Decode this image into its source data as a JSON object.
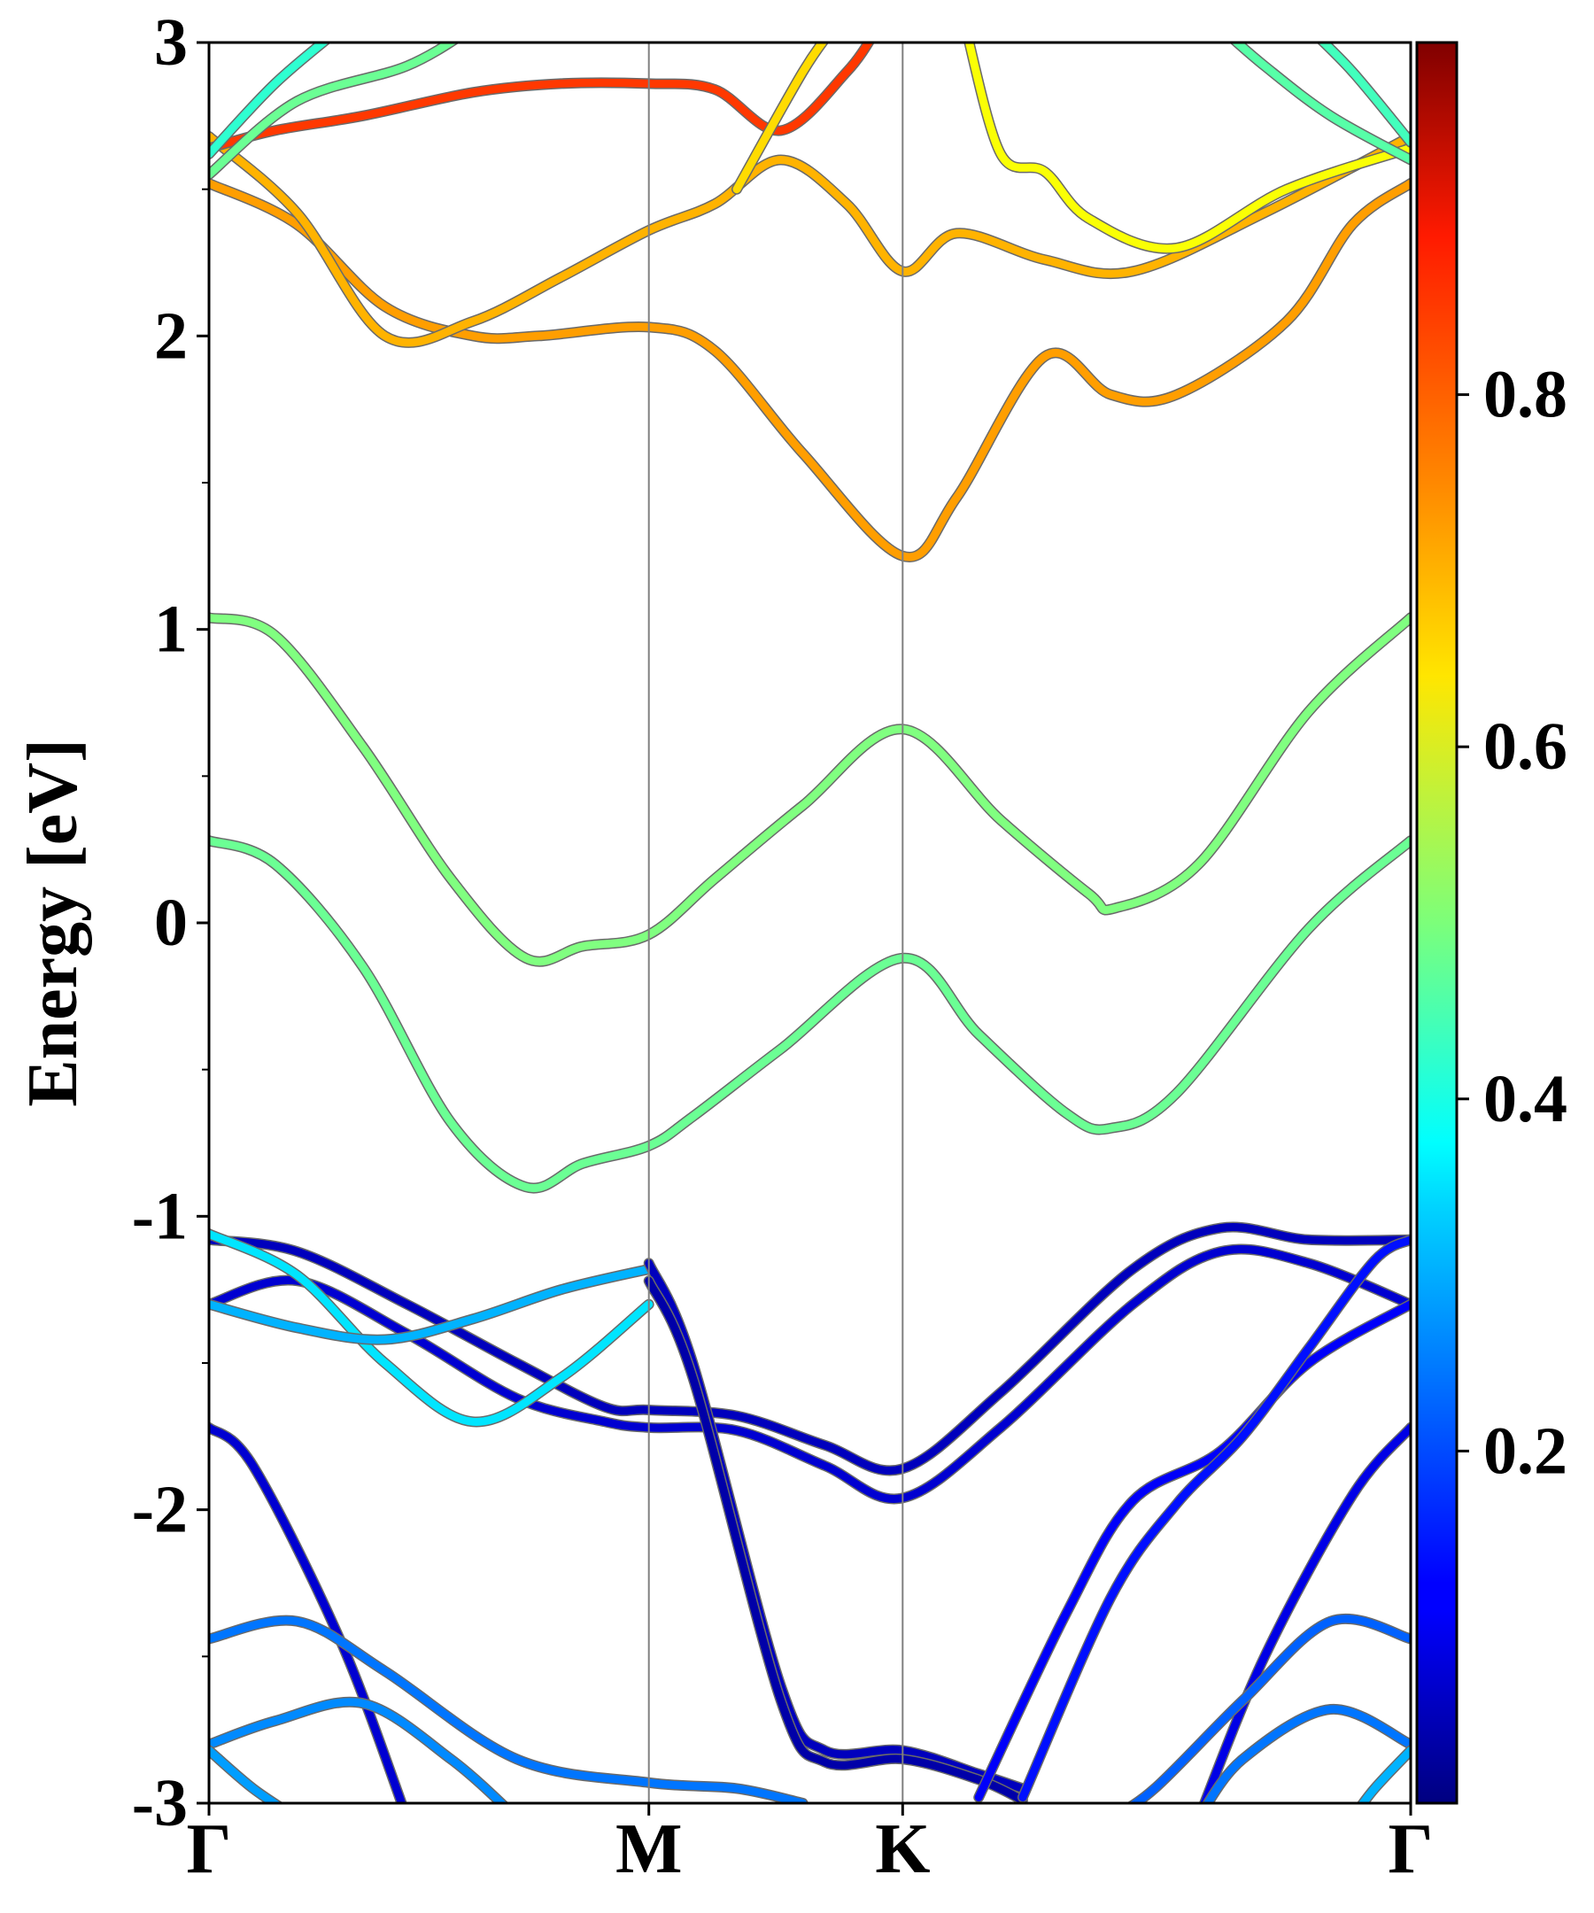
{
  "chart_data": {
    "type": "line",
    "title": "",
    "xlabel": "",
    "ylabel": "Energy [eV]",
    "ylim": [
      -3,
      3
    ],
    "ymajor_ticks": [
      -3,
      -2,
      -1,
      0,
      1,
      2,
      3
    ],
    "yminor_ticks": [
      -2.5,
      -1.5,
      -0.5,
      0.5,
      1.5,
      2.5
    ],
    "high_symmetry_points": [
      {
        "label": "Γ",
        "k": 0.0
      },
      {
        "label": "M",
        "k": 1.0
      },
      {
        "label": "K",
        "k": 1.577
      },
      {
        "label": "Γ",
        "k": 2.732
      }
    ],
    "colorbar": {
      "colormap": "jet",
      "range": [
        0,
        1
      ],
      "ticks": [
        0.2,
        0.4,
        0.6,
        0.8
      ],
      "tick_labels": [
        "0.2",
        "0.4",
        "0.6",
        "0.8"
      ]
    },
    "series": [
      {
        "weight": 0.5,
        "points": [
          [
            0,
            1.04
          ],
          [
            0.15,
            0.98
          ],
          [
            0.35,
            0.6
          ],
          [
            0.55,
            0.15
          ],
          [
            0.72,
            -0.12
          ],
          [
            0.85,
            -0.08
          ],
          [
            1.0,
            -0.04
          ],
          [
            1.15,
            0.15
          ],
          [
            1.35,
            0.4
          ],
          [
            1.577,
            0.66
          ],
          [
            1.8,
            0.35
          ],
          [
            2.0,
            0.1
          ],
          [
            2.06,
            0.05
          ],
          [
            2.25,
            0.2
          ],
          [
            2.5,
            0.72
          ],
          [
            2.732,
            1.04
          ]
        ]
      },
      {
        "weight": 0.48,
        "points": [
          [
            0,
            0.28
          ],
          [
            0.15,
            0.2
          ],
          [
            0.35,
            -0.15
          ],
          [
            0.55,
            -0.68
          ],
          [
            0.72,
            -0.9
          ],
          [
            0.85,
            -0.82
          ],
          [
            1.0,
            -0.76
          ],
          [
            1.1,
            -0.66
          ],
          [
            1.3,
            -0.43
          ],
          [
            1.577,
            -0.12
          ],
          [
            1.75,
            -0.38
          ],
          [
            1.95,
            -0.65
          ],
          [
            2.05,
            -0.7
          ],
          [
            2.2,
            -0.58
          ],
          [
            2.5,
            -0.02
          ],
          [
            2.732,
            0.28
          ]
        ]
      },
      {
        "weight": 0.72,
        "points": [
          [
            0,
            2.52
          ],
          [
            0.2,
            2.38
          ],
          [
            0.4,
            2.1
          ],
          [
            0.6,
            2.0
          ],
          [
            0.75,
            2.0
          ],
          [
            1.0,
            2.03
          ],
          [
            1.15,
            1.95
          ],
          [
            1.35,
            1.6
          ],
          [
            1.577,
            1.25
          ],
          [
            1.7,
            1.45
          ],
          [
            1.9,
            1.93
          ],
          [
            2.05,
            1.8
          ],
          [
            2.2,
            1.8
          ],
          [
            2.45,
            2.05
          ],
          [
            2.6,
            2.38
          ],
          [
            2.732,
            2.52
          ]
        ]
      },
      {
        "weight": 0.7,
        "points": [
          [
            0,
            2.68
          ],
          [
            0.2,
            2.42
          ],
          [
            0.4,
            2.0
          ],
          [
            0.6,
            2.05
          ],
          [
            0.8,
            2.2
          ],
          [
            1.0,
            2.36
          ],
          [
            1.15,
            2.45
          ],
          [
            1.3,
            2.6
          ],
          [
            1.45,
            2.45
          ],
          [
            1.577,
            2.22
          ],
          [
            1.7,
            2.35
          ],
          [
            1.9,
            2.26
          ],
          [
            2.1,
            2.22
          ],
          [
            2.4,
            2.42
          ],
          [
            2.732,
            2.68
          ]
        ]
      },
      {
        "weight": 0.82,
        "points": [
          [
            0,
            2.64
          ],
          [
            0.15,
            2.7
          ],
          [
            0.35,
            2.75
          ],
          [
            0.6,
            2.83
          ],
          [
            0.8,
            2.86
          ],
          [
            1.0,
            2.86
          ],
          [
            1.15,
            2.84
          ],
          [
            1.3,
            2.7
          ],
          [
            1.45,
            2.9
          ],
          [
            1.52,
            3.05
          ]
        ]
      },
      {
        "weight": 0.66,
        "points": [
          [
            1.2,
            2.5
          ],
          [
            1.35,
            2.9
          ],
          [
            1.42,
            3.05
          ]
        ]
      },
      {
        "weight": 0.62,
        "points": [
          [
            1.72,
            3.05
          ],
          [
            1.8,
            2.62
          ],
          [
            1.9,
            2.56
          ],
          [
            2.0,
            2.4
          ],
          [
            2.2,
            2.3
          ],
          [
            2.45,
            2.5
          ],
          [
            2.732,
            2.64
          ]
        ]
      },
      {
        "weight": 0.48,
        "points": [
          [
            0,
            2.55
          ],
          [
            0.2,
            2.8
          ],
          [
            0.45,
            2.92
          ],
          [
            0.6,
            3.05
          ]
        ]
      },
      {
        "weight": 0.42,
        "points": [
          [
            0,
            2.62
          ],
          [
            0.15,
            2.86
          ],
          [
            0.3,
            3.05
          ]
        ]
      },
      {
        "weight": 0.46,
        "points": [
          [
            2.732,
            2.6
          ],
          [
            2.55,
            2.75
          ],
          [
            2.4,
            2.92
          ],
          [
            2.3,
            3.05
          ]
        ]
      },
      {
        "weight": 0.44,
        "points": [
          [
            2.732,
            2.66
          ],
          [
            2.6,
            2.9
          ],
          [
            2.5,
            3.05
          ]
        ]
      },
      {
        "weight": 0.06,
        "points": [
          [
            0,
            -1.08
          ],
          [
            0.2,
            -1.12
          ],
          [
            0.45,
            -1.3
          ],
          [
            0.7,
            -1.5
          ],
          [
            0.9,
            -1.65
          ],
          [
            1.0,
            -1.66
          ],
          [
            1.2,
            -1.68
          ],
          [
            1.4,
            -1.78
          ],
          [
            1.577,
            -1.86
          ],
          [
            1.8,
            -1.6
          ],
          [
            2.1,
            -1.18
          ],
          [
            2.3,
            -1.04
          ],
          [
            2.5,
            -1.08
          ],
          [
            2.732,
            -1.08
          ]
        ]
      },
      {
        "weight": 0.08,
        "points": [
          [
            0,
            -1.3
          ],
          [
            0.2,
            -1.22
          ],
          [
            0.45,
            -1.4
          ],
          [
            0.7,
            -1.62
          ],
          [
            0.9,
            -1.7
          ],
          [
            1.0,
            -1.72
          ],
          [
            1.2,
            -1.73
          ],
          [
            1.4,
            -1.85
          ],
          [
            1.577,
            -1.96
          ],
          [
            1.8,
            -1.72
          ],
          [
            2.1,
            -1.3
          ],
          [
            2.3,
            -1.12
          ],
          [
            2.5,
            -1.16
          ],
          [
            2.732,
            -1.3
          ]
        ]
      },
      {
        "weight": 0.35,
        "points": [
          [
            0,
            -1.06
          ],
          [
            0.2,
            -1.2
          ],
          [
            0.4,
            -1.5
          ],
          [
            0.6,
            -1.7
          ],
          [
            0.8,
            -1.55
          ],
          [
            1.0,
            -1.3
          ]
        ]
      },
      {
        "weight": 0.3,
        "points": [
          [
            0,
            -1.3
          ],
          [
            0.2,
            -1.38
          ],
          [
            0.4,
            -1.42
          ],
          [
            0.6,
            -1.35
          ],
          [
            0.8,
            -1.25
          ],
          [
            1.0,
            -1.18
          ]
        ]
      },
      {
        "weight": 0.06,
        "points": [
          [
            1.0,
            -1.16
          ],
          [
            1.1,
            -1.5
          ],
          [
            1.3,
            -2.6
          ],
          [
            1.4,
            -2.82
          ],
          [
            1.577,
            -2.82
          ],
          [
            1.75,
            -2.9
          ],
          [
            1.85,
            -2.95
          ]
        ]
      },
      {
        "weight": 0.04,
        "points": [
          [
            1.0,
            -1.22
          ],
          [
            1.1,
            -1.55
          ],
          [
            1.3,
            -2.65
          ],
          [
            1.4,
            -2.86
          ],
          [
            1.577,
            -2.85
          ],
          [
            1.75,
            -2.92
          ],
          [
            1.85,
            -2.99
          ]
        ]
      },
      {
        "weight": 0.12,
        "points": [
          [
            1.75,
            -2.98
          ],
          [
            1.95,
            -2.35
          ],
          [
            2.1,
            -1.97
          ],
          [
            2.3,
            -1.8
          ],
          [
            2.5,
            -1.5
          ],
          [
            2.732,
            -1.3
          ]
        ]
      },
      {
        "weight": 0.14,
        "points": [
          [
            1.85,
            -2.98
          ],
          [
            2.05,
            -2.3
          ],
          [
            2.2,
            -1.98
          ],
          [
            2.35,
            -1.75
          ],
          [
            2.5,
            -1.45
          ],
          [
            2.65,
            -1.15
          ],
          [
            2.732,
            -1.08
          ]
        ]
      },
      {
        "weight": 0.08,
        "points": [
          [
            0,
            -1.72
          ],
          [
            0.1,
            -1.85
          ],
          [
            0.3,
            -2.45
          ],
          [
            0.45,
            -3.05
          ]
        ]
      },
      {
        "weight": 0.1,
        "points": [
          [
            2.732,
            -1.72
          ],
          [
            2.6,
            -1.95
          ],
          [
            2.4,
            -2.5
          ],
          [
            2.25,
            -3.05
          ]
        ]
      },
      {
        "weight": 0.24,
        "points": [
          [
            0,
            -2.44
          ],
          [
            0.2,
            -2.38
          ],
          [
            0.4,
            -2.55
          ],
          [
            0.7,
            -2.85
          ],
          [
            1.0,
            -2.93
          ],
          [
            1.2,
            -2.95
          ],
          [
            1.35,
            -3.0
          ]
        ]
      },
      {
        "weight": 0.26,
        "points": [
          [
            0,
            -2.8
          ],
          [
            0.15,
            -2.72
          ],
          [
            0.35,
            -2.66
          ],
          [
            0.55,
            -2.85
          ],
          [
            0.7,
            -3.05
          ]
        ]
      },
      {
        "weight": 0.22,
        "points": [
          [
            2.732,
            -2.44
          ],
          [
            2.55,
            -2.38
          ],
          [
            2.35,
            -2.65
          ],
          [
            2.15,
            -2.95
          ],
          [
            2.05,
            -3.05
          ]
        ]
      },
      {
        "weight": 0.24,
        "points": [
          [
            2.732,
            -2.8
          ],
          [
            2.55,
            -2.68
          ],
          [
            2.35,
            -2.85
          ],
          [
            2.25,
            -3.05
          ]
        ]
      },
      {
        "weight": 0.28,
        "points": [
          [
            0,
            -2.82
          ],
          [
            0.1,
            -2.95
          ],
          [
            0.2,
            -3.05
          ]
        ]
      },
      {
        "weight": 0.3,
        "points": [
          [
            2.732,
            -2.82
          ],
          [
            2.65,
            -2.95
          ],
          [
            2.6,
            -3.05
          ]
        ]
      }
    ]
  }
}
